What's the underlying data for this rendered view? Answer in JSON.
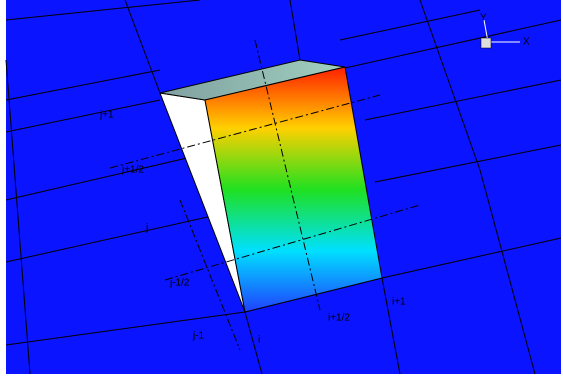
{
  "labels": {
    "j": [
      "j+1",
      "j+1/2",
      "j",
      "j-1/2",
      "j-1"
    ],
    "i": [
      "i",
      "i+1/2",
      "i+1"
    ],
    "axes": [
      "Y",
      "X"
    ]
  }
}
